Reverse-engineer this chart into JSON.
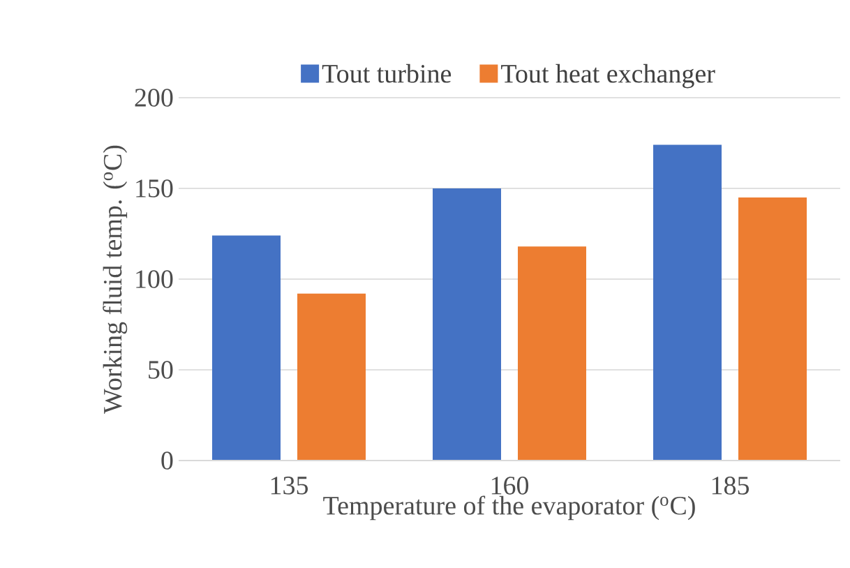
{
  "chart_data": {
    "type": "bar",
    "categories": [
      "135",
      "160",
      "185"
    ],
    "series": [
      {
        "name": "Tout turbine",
        "color": "#4472c4",
        "values": [
          124,
          150,
          174
        ]
      },
      {
        "name": "Tout heat exchanger",
        "color": "#ed7d31",
        "values": [
          92,
          118,
          145
        ]
      }
    ],
    "xlabel": "Temperature of the evaporator ($^{o}$C)",
    "ylabel": "Working fluid temp. ($^{o}$C)",
    "ylim": [
      0,
      200
    ],
    "yticks": [
      0,
      50,
      100,
      150,
      200
    ],
    "grid": "y",
    "legend": "top"
  }
}
